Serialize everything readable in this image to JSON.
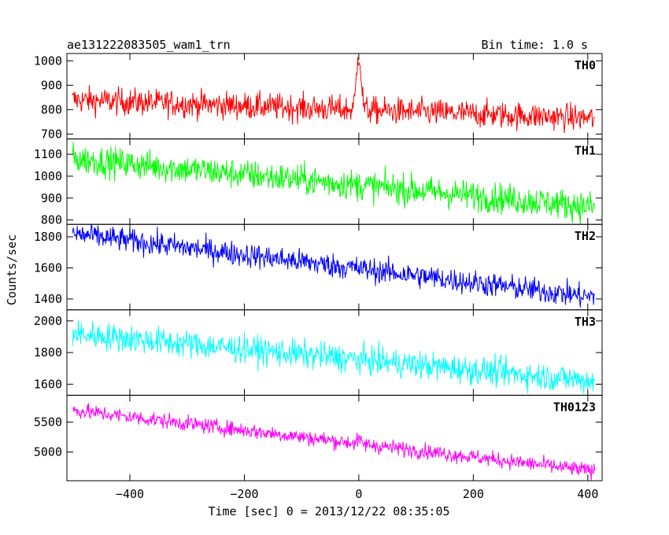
{
  "header": {
    "title": "ae131222083505_wam1_trn",
    "bin_time": "Bin time: 1.0 s"
  },
  "chart_data": {
    "type": "line",
    "xlabel": "Time [sec] 0 = 2013/12/22 08:35:05",
    "ylabel": "Counts/sec",
    "xlim": [
      -510,
      425
    ],
    "xticks": [
      -400,
      -200,
      0,
      200,
      400
    ],
    "x_start": -500,
    "x_end": 412,
    "bin": 1.0,
    "grid": false,
    "panels": [
      {
        "name": "TH0",
        "color": "#ff0000",
        "ylim": [
          680,
          1030
        ],
        "yticks": [
          700,
          800,
          900,
          1000
        ],
        "trend_start": 840,
        "trend_end": 765,
        "noise": 28,
        "peak": {
          "x": 0,
          "value": 1030,
          "width": 4
        }
      },
      {
        "name": "TH1",
        "color": "#00ff00",
        "ylim": [
          780,
          1170
        ],
        "yticks": [
          800,
          900,
          1000,
          1100
        ],
        "trend_start": 1080,
        "trend_end": 860,
        "noise": 35,
        "peak": null
      },
      {
        "name": "TH2",
        "color": "#0000ff",
        "ylim": [
          1330,
          1880
        ],
        "yticks": [
          1400,
          1600,
          1800
        ],
        "trend_start": 1820,
        "trend_end": 1410,
        "noise": 40,
        "peak": null
      },
      {
        "name": "TH3",
        "color": "#00ffff",
        "ylim": [
          1530,
          2070
        ],
        "yticks": [
          1600,
          1800,
          2000
        ],
        "trend_start": 1920,
        "trend_end": 1620,
        "noise": 45,
        "peak": null
      },
      {
        "name": "TH0123",
        "color": "#ff00ff",
        "ylim": [
          4520,
          5950
        ],
        "yticks": [
          5000,
          5500
        ],
        "trend_start": 5700,
        "trend_end": 4680,
        "noise": 65,
        "peak": {
          "x": 0,
          "value": 5200,
          "width": 3
        }
      }
    ]
  }
}
